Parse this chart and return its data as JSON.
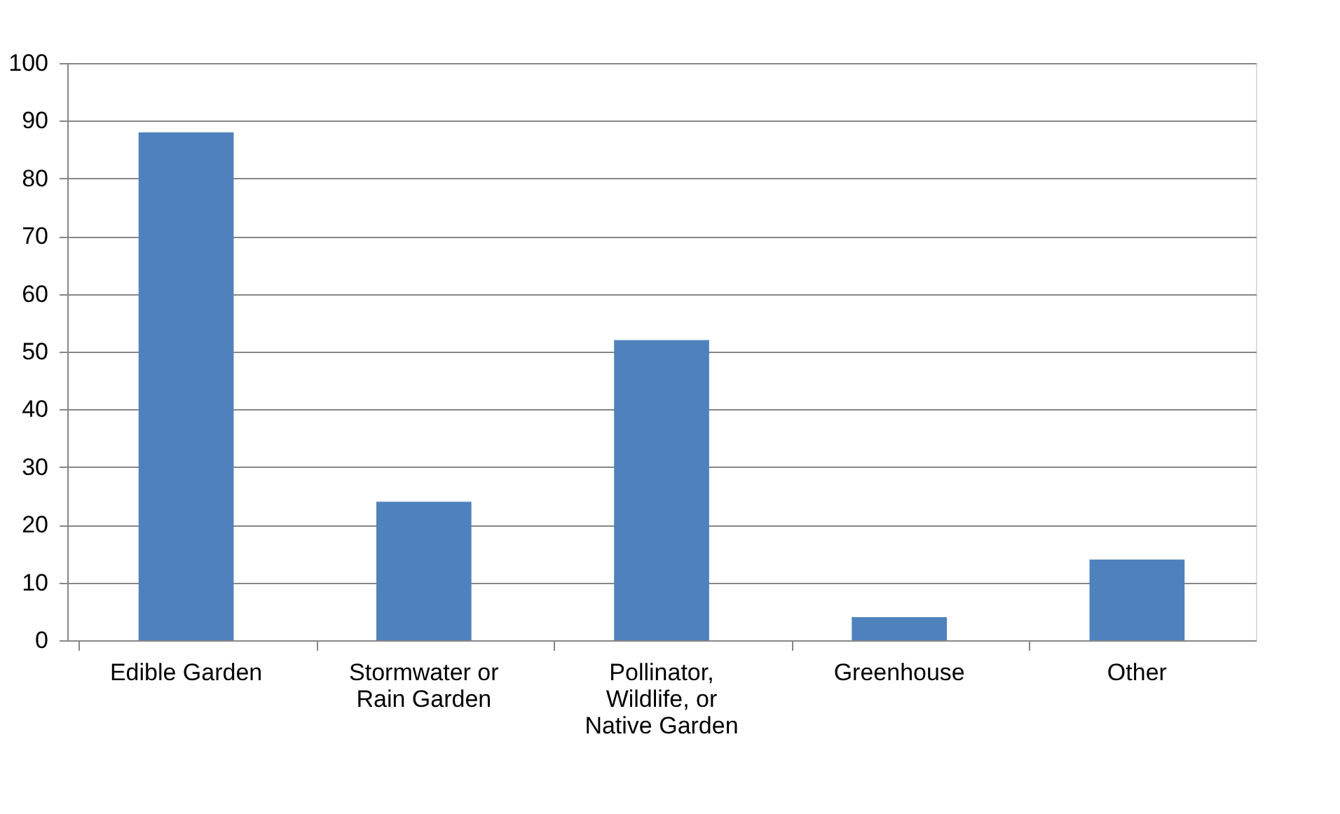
{
  "chart_data": {
    "type": "bar",
    "categories": [
      "Edible Garden",
      "Stormwater or Rain Garden",
      "Pollinator, Wildlife, or Native Garden",
      "Greenhouse",
      "Other"
    ],
    "values": [
      88,
      24,
      52,
      4,
      14
    ],
    "color": "#4f81bd",
    "ylim": [
      0,
      100
    ],
    "yticks": [
      0,
      10,
      20,
      30,
      40,
      50,
      60,
      70,
      80,
      90,
      100
    ],
    "grid": "y"
  }
}
